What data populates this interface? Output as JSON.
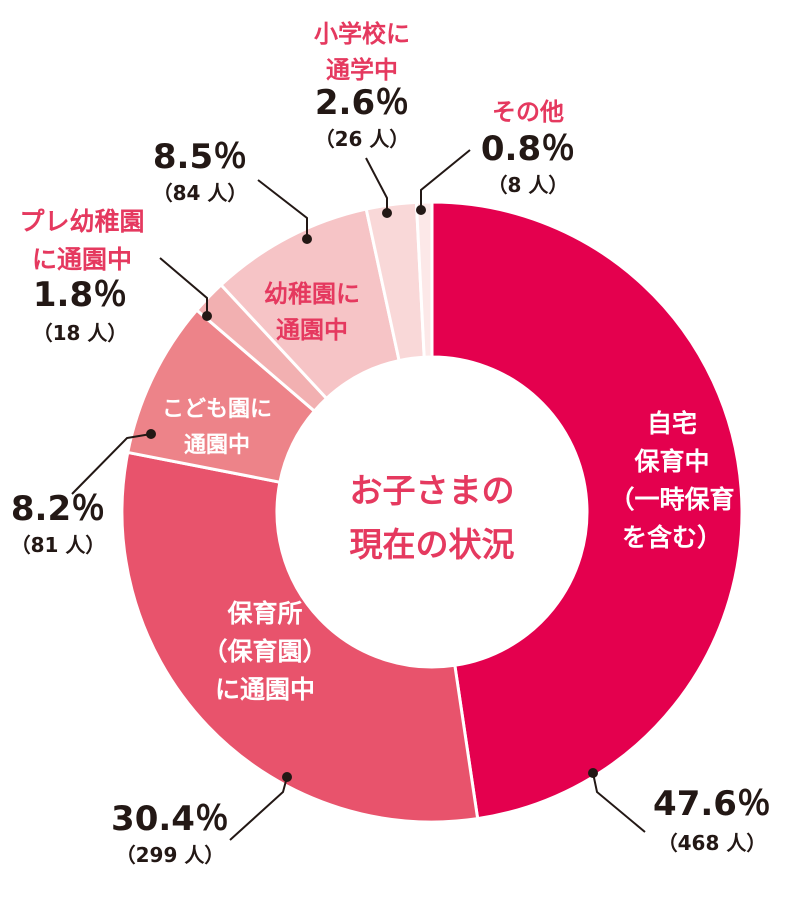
{
  "chart_data": {
    "type": "pie",
    "donut": true,
    "title": [
      "お子さまの",
      "現在の状況"
    ],
    "slices": [
      {
        "label": [
          "自宅",
          "保育中",
          "（一時保育",
          "を含む）"
        ],
        "percent": 47.6,
        "count": "（468 人）",
        "percent_label": "47.6％",
        "color": "#e4004e",
        "label_color": "#ffffff"
      },
      {
        "label": [
          "保育所",
          "（保育園）",
          "に通園中"
        ],
        "percent": 30.4,
        "count": "（299 人）",
        "percent_label": "30.4％",
        "color": "#e8536c",
        "label_color": "#ffffff"
      },
      {
        "label": [
          "こども園に",
          "通園中"
        ],
        "percent": 8.2,
        "count": "（81 人）",
        "percent_label": "8.2％",
        "color": "#ed8389",
        "label_color": "#ffffff"
      },
      {
        "label": [
          "プレ幼稚園",
          "に通園中"
        ],
        "percent": 1.8,
        "count": "（18 人）",
        "percent_label": "1.8％",
        "color": "#f2b0b1",
        "label_color": "#e5395f"
      },
      {
        "label": [
          "幼稚園に",
          "通園中"
        ],
        "percent": 8.5,
        "count": "（84 人）",
        "percent_label": "8.5％",
        "color": "#f6c4c6",
        "label_color": "#e5395f"
      },
      {
        "label": [
          "小学校に",
          "通学中"
        ],
        "percent": 2.6,
        "count": "（26 人）",
        "percent_label": "2.6％",
        "color": "#f9d8d8",
        "label_color": "#e5395f"
      },
      {
        "label": [
          "その他"
        ],
        "percent": 0.8,
        "count": "（8 人）",
        "percent_label": "0.8％",
        "color": "#fce8e8",
        "label_color": "#e5395f"
      }
    ]
  }
}
